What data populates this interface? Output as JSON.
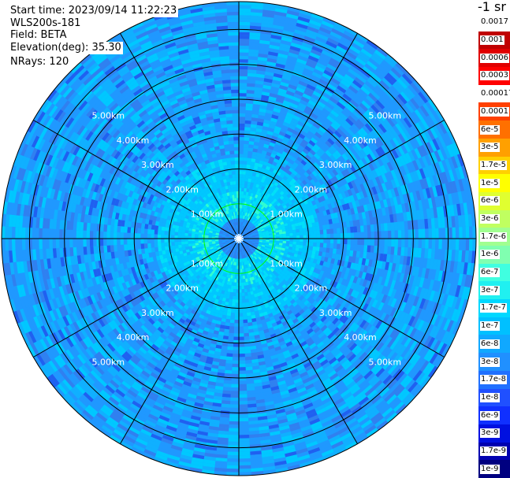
{
  "info": {
    "start_time": "Start time: 2023/09/14 11:22:23",
    "instrument": "WLS200s-181",
    "field": "Field: BETA",
    "elevation": "Elevation(deg): 35.30",
    "nrays": "NRays: 120"
  },
  "range_rings_km": [
    1,
    2,
    3,
    4,
    5,
    6
  ],
  "range_labels": [
    "1.00km",
    "2.00km",
    "3.00km",
    "4.00km",
    "5.00km"
  ],
  "max_range_km": 6.8,
  "colorbar": {
    "title": "-1 sr",
    "labels": [
      "0.0017",
      "0.001",
      "0.0006",
      "0.0003",
      "0.00017",
      "0.0001",
      "6e-5",
      "3e-5",
      "1.7e-5",
      "1e-5",
      "6e-6",
      "3e-6",
      "1.7e-6",
      "1e-6",
      "6e-7",
      "3e-7",
      "1.7e-7",
      "1e-7",
      "6e-8",
      "3e-8",
      "1.7e-8",
      "1e-8",
      "6e-9",
      "3e-9",
      "1.7e-9",
      "1e-9"
    ],
    "colors": [
      "#ffffff",
      "#c00000",
      "#e00000",
      "#ff0000",
      "#ffffff",
      "#ff4000",
      "#ff7000",
      "#ffa000",
      "#ffd000",
      "#ffff00",
      "#e0ff30",
      "#c0ff60",
      "#a0ff90",
      "#80ffb0",
      "#40ffe0",
      "#20f0f0",
      "#00d8ff",
      "#00c0ff",
      "#10a8ff",
      "#2090ff",
      "#2070ff",
      "#2050ff",
      "#1030ff",
      "#0010e0",
      "#0000b0",
      "#000080"
    ]
  },
  "field_palette": [
    "#00c8ff",
    "#10b0ff",
    "#2098ff",
    "#3080f0",
    "#00e0f8",
    "#30ffd0",
    "#2060f0"
  ]
}
